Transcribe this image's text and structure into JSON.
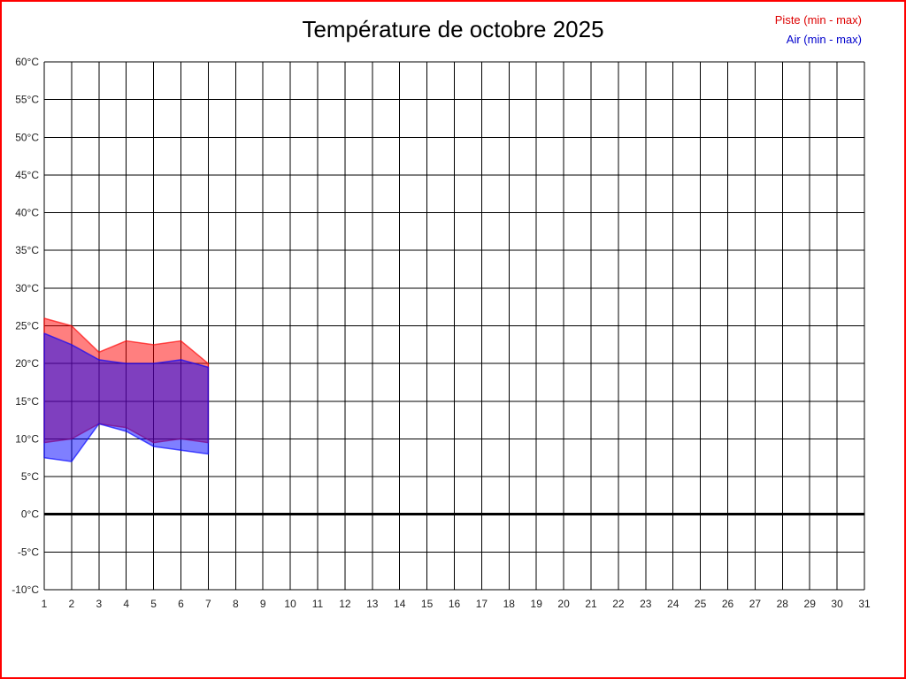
{
  "page": {
    "background": "#ffffff",
    "border_color": "#ff0000"
  },
  "legend": {
    "piste_label": "Piste (min - max)",
    "air_label": "Air (min - max)",
    "piste_color": "#dd0000",
    "air_color": "#0000cc"
  },
  "chart_data": {
    "type": "area",
    "title": "Température de octobre 2025",
    "xlabel": "",
    "ylabel": "",
    "xlim": [
      1,
      31
    ],
    "ylim": [
      -10,
      60
    ],
    "x_tick_values": [
      1,
      2,
      3,
      4,
      5,
      6,
      7,
      8,
      9,
      10,
      11,
      12,
      13,
      14,
      15,
      16,
      17,
      18,
      19,
      20,
      21,
      22,
      23,
      24,
      25,
      26,
      27,
      28,
      29,
      30,
      31
    ],
    "y_tick_values": [
      60,
      55,
      50,
      45,
      40,
      35,
      30,
      25,
      20,
      15,
      10,
      5,
      0,
      -5,
      -10
    ],
    "y_tick_suffix": "°C",
    "grid": true,
    "grid_color": "#000000",
    "zero_line": {
      "value": 0,
      "color": "#000000",
      "width": 3
    },
    "legend_position": "top-right",
    "x": [
      1,
      2,
      3,
      4,
      5,
      6,
      7
    ],
    "series": [
      {
        "name": "Piste (min - max)",
        "min": [
          9.5,
          10,
          12,
          11.5,
          9.5,
          10,
          9.5
        ],
        "max": [
          26,
          25,
          21.5,
          23,
          22.5,
          23,
          20
        ],
        "fill": "rgba(255,0,0,0.5)",
        "line": "rgba(255,0,0,0.65)"
      },
      {
        "name": "Air (min - max)",
        "min": [
          7.5,
          7,
          12,
          11,
          9,
          8.5,
          8
        ],
        "max": [
          24,
          22.5,
          20.5,
          20,
          20,
          20.5,
          19.5
        ],
        "fill": "rgba(0,0,255,0.5)",
        "line": "rgba(0,0,255,0.65)"
      }
    ]
  }
}
